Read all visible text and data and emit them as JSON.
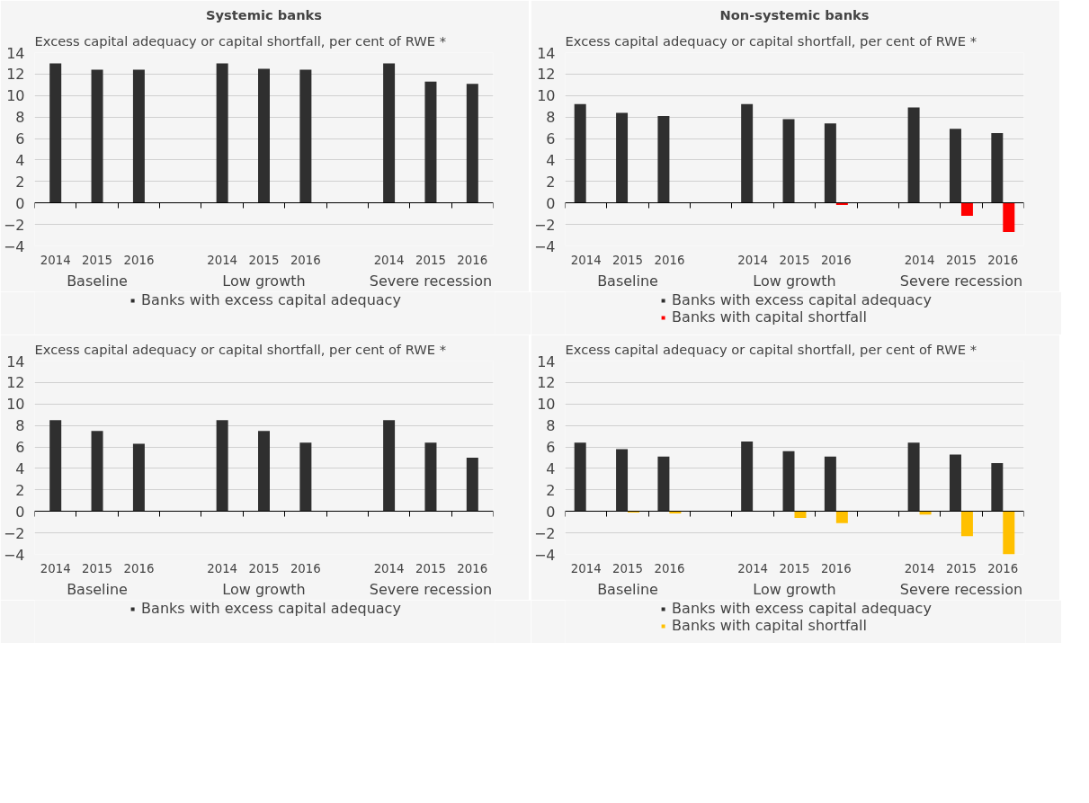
{
  "chart_data": [
    {
      "type": "bar",
      "title": "Systemic banks",
      "ylabel": "Excess capital adequacy or capital shortfall, per cent of RWE *",
      "categories": [
        "2014",
        "2015",
        "2016",
        null,
        "2014",
        "2015",
        "2016",
        null,
        "2014",
        "2015",
        "2016"
      ],
      "annotations": [
        "Baseline",
        "Low growth",
        "Severe recession"
      ],
      "series": [
        {
          "name": "Banks with excess capital adequacy",
          "color": "#2f2f2f",
          "values": [
            13.0,
            12.4,
            12.4,
            null,
            13.0,
            12.5,
            12.4,
            null,
            13.0,
            11.3,
            11.1
          ]
        }
      ],
      "ylim": [
        -4,
        14
      ],
      "yticks": [
        -4,
        -2,
        0,
        2,
        4,
        6,
        8,
        10,
        12,
        14
      ],
      "grid": "y",
      "legend": "bottom"
    },
    {
      "type": "bar",
      "title": "Non-systemic banks",
      "ylabel": "Excess capital adequacy or capital shortfall, per cent of RWE *",
      "categories": [
        "2014",
        "2015",
        "2016",
        null,
        "2014",
        "2015",
        "2016",
        null,
        "2014",
        "2015",
        "2016"
      ],
      "annotations": [
        "Baseline",
        "Low growth",
        "Severe recession"
      ],
      "series": [
        {
          "name": "Banks with excess capital adequacy",
          "color": "#2f2f2f",
          "values": [
            9.2,
            8.4,
            8.1,
            null,
            9.2,
            7.8,
            7.4,
            null,
            8.9,
            6.9,
            6.5
          ]
        },
        {
          "name": "Banks with capital shortfall",
          "color": "#ff0000",
          "values": [
            null,
            null,
            null,
            null,
            null,
            null,
            -0.2,
            null,
            null,
            -1.2,
            -2.7
          ]
        }
      ],
      "ylim": [
        -4,
        14
      ],
      "yticks": [
        -4,
        -2,
        0,
        2,
        4,
        6,
        8,
        10,
        12,
        14
      ],
      "grid": "y",
      "legend": "bottom"
    },
    {
      "type": "bar",
      "ylabel": "Excess capital adequacy or capital shortfall, per cent of RWE *",
      "categories": [
        "2014",
        "2015",
        "2016",
        null,
        "2014",
        "2015",
        "2016",
        null,
        "2014",
        "2015",
        "2016"
      ],
      "annotations": [
        "Baseline",
        "Low growth",
        "Severe recession"
      ],
      "series": [
        {
          "name": "Banks with excess capital adequacy",
          "color": "#2f2f2f",
          "values": [
            8.5,
            7.5,
            6.3,
            null,
            8.5,
            7.5,
            6.4,
            null,
            8.5,
            6.4,
            5.0
          ]
        }
      ],
      "ylim": [
        -4,
        14
      ],
      "yticks": [
        -4,
        -2,
        0,
        2,
        4,
        6,
        8,
        10,
        12,
        14
      ],
      "grid": "y",
      "legend": "bottom"
    },
    {
      "type": "bar",
      "ylabel": "Excess capital adequacy or capital shortfall, per cent of RWE *",
      "categories": [
        "2014",
        "2015",
        "2016",
        null,
        "2014",
        "2015",
        "2016",
        null,
        "2014",
        "2015",
        "2016"
      ],
      "annotations": [
        "Baseline",
        "Low growth",
        "Severe recession"
      ],
      "series": [
        {
          "name": "Banks with excess capital adequacy",
          "color": "#2f2f2f",
          "values": [
            6.4,
            5.8,
            5.1,
            null,
            6.5,
            5.6,
            5.1,
            null,
            6.4,
            5.3,
            4.5
          ]
        },
        {
          "name": "Banks with capital shortfall",
          "color": "#ffc000",
          "values": [
            0,
            -0.1,
            -0.2,
            null,
            0,
            -0.6,
            -1.1,
            null,
            -0.3,
            -2.3,
            -4
          ]
        }
      ],
      "ylim": [
        -4,
        14
      ],
      "yticks": [
        -4,
        -2,
        0,
        2,
        4,
        6,
        8,
        10,
        12,
        14
      ],
      "grid": "y",
      "legend": "bottom"
    }
  ]
}
